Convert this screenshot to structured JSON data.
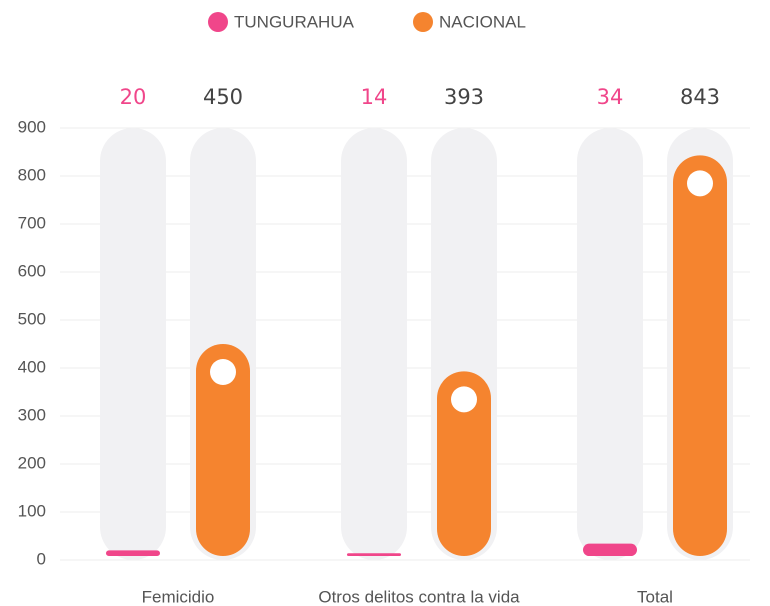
{
  "chart_data": {
    "type": "bar",
    "categories": [
      "Femicidio",
      "Otros delitos contra la vida",
      "Total"
    ],
    "series": [
      {
        "name": "TUNGURAHUA",
        "color": "#f0468a",
        "values": [
          20,
          14,
          34
        ]
      },
      {
        "name": "NACIONAL",
        "color": "#f5842f",
        "values": [
          450,
          393,
          843
        ]
      }
    ],
    "ylim": [
      0,
      900
    ],
    "yticks": [
      0,
      100,
      200,
      300,
      400,
      500,
      600,
      700,
      800,
      900
    ],
    "grid": true
  }
}
